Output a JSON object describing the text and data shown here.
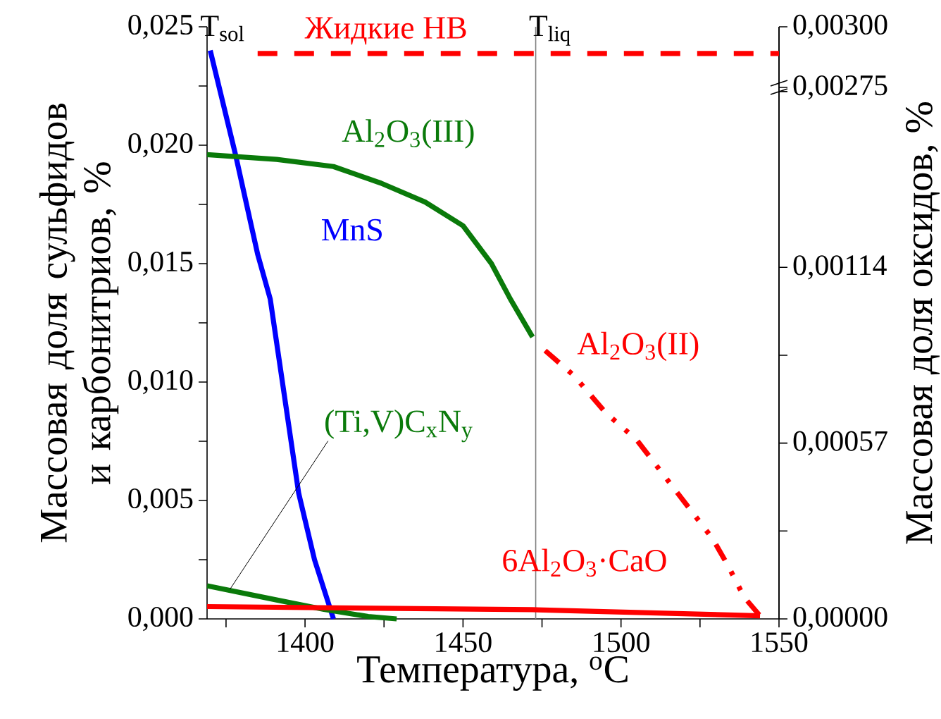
{
  "chart_data": {
    "type": "line",
    "xlabel": "Температура, $^{o}$C",
    "ylabel": "Массовая доля сульфидов и карбонитриов, %",
    "y2label": "Массовая доля оксидов, %",
    "xlim": [
      1369,
      1550
    ],
    "xticks": [
      {
        "value": 1375,
        "label": null
      },
      1400,
      {
        "value": 1425,
        "label": null
      },
      1450,
      {
        "value": 1475,
        "label": null
      },
      1500,
      {
        "value": 1525,
        "label": null
      },
      1550
    ],
    "ylim": [
      0,
      0.025
    ],
    "yticks": [
      {
        "value": 0,
        "label": "0,000"
      },
      {
        "value": 0.0025,
        "label": null
      },
      {
        "value": 0.005,
        "label": "0,005"
      },
      {
        "value": 0.0075,
        "label": null
      },
      {
        "value": 0.01,
        "label": "0,010"
      },
      {
        "value": 0.0125,
        "label": null
      },
      {
        "value": 0.015,
        "label": "0,015"
      },
      {
        "value": 0.0175,
        "label": null
      },
      {
        "value": 0.02,
        "label": "0,020"
      },
      {
        "value": 0.0225,
        "label": null
      },
      {
        "value": 0.025,
        "label": "0,025"
      }
    ],
    "y2lim": [
      0,
      0.00192
    ],
    "y2ticks": [
      {
        "value": 0,
        "label": "0,00000"
      },
      {
        "value": 0.000285,
        "label": null
      },
      {
        "value": 0.00057,
        "label": "0,00057"
      },
      {
        "value": 0.000855,
        "label": null
      },
      {
        "value": 0.00114,
        "label": "0,00114"
      },
      {
        "value": 0.00171,
        "label": null
      }
    ],
    "y3lim": [
      0.00056,
      0.003
    ],
    "y3ticks": [
      {
        "value": 0.00275,
        "label": "0,00275"
      },
      {
        "value": 0.003,
        "label": "0,00300"
      }
    ],
    "grid": false,
    "legend": false,
    "marker": "none",
    "annotations": [
      "T$_{sol}$"
    ],
    "ref_lines": [
      {
        "axis": "x",
        "value": 1473,
        "label": "T$_{liq}$",
        "color": "#808080"
      }
    ],
    "series": [
      {
        "name": "MnS",
        "color": "#0000ff",
        "axis": "y",
        "line_style": "solid",
        "x": [
          1370,
          1378,
          1385,
          1389,
          1398,
          1403,
          1409
        ],
        "values": [
          0.024,
          0.0196,
          0.0154,
          0.0135,
          0.0053,
          0.0025,
          0
        ]
      },
      {
        "name": "Al$_{2}$O$_{3}$(III)",
        "color": "#0a7a0a",
        "axis": "y",
        "line_style": "solid",
        "x": [
          1369,
          1391,
          1409,
          1424,
          1438,
          1450,
          1459,
          1465,
          1472
        ],
        "values": [
          0.0196,
          0.0194,
          0.0191,
          0.0184,
          0.0176,
          0.0166,
          0.015,
          0.0135,
          0.0119
        ]
      },
      {
        "name": "(Ti,V)C$_{x}$N$_{y}$",
        "color": "#0a7a0a",
        "axis": "y",
        "line_style": "solid",
        "x": [
          1369,
          1391,
          1406,
          1420,
          1429
        ],
        "values": [
          0.0014,
          0.0008,
          0.0004,
          0.0001,
          0
        ]
      },
      {
        "name": "Жидкие НВ",
        "color": "#ff0000",
        "axis": "y3",
        "line_style": "dashed",
        "x": [
          1385,
          1550
        ],
        "values": [
          0.00289,
          0.00289
        ]
      },
      {
        "name": "Al$_{2}$O$_{3}$(II)",
        "color": "#ff0000",
        "axis": "y2",
        "line_style": "dashdotdot",
        "x": [
          1476,
          1485,
          1495,
          1505,
          1520,
          1529,
          1534,
          1539,
          1544
        ],
        "values": [
          0.00087,
          0.00079,
          0.00067,
          0.00058,
          0.00038,
          0.00026,
          0.00017,
          7e-05,
          1e-05
        ]
      },
      {
        "name": "6Al$_{2}$O$_{3}$·CaO",
        "color": "#ff0000",
        "axis": "y2",
        "line_style": "solid",
        "x": [
          1369,
          1472,
          1544
        ],
        "values": [
          4e-05,
          3e-05,
          1e-05
        ]
      }
    ]
  }
}
